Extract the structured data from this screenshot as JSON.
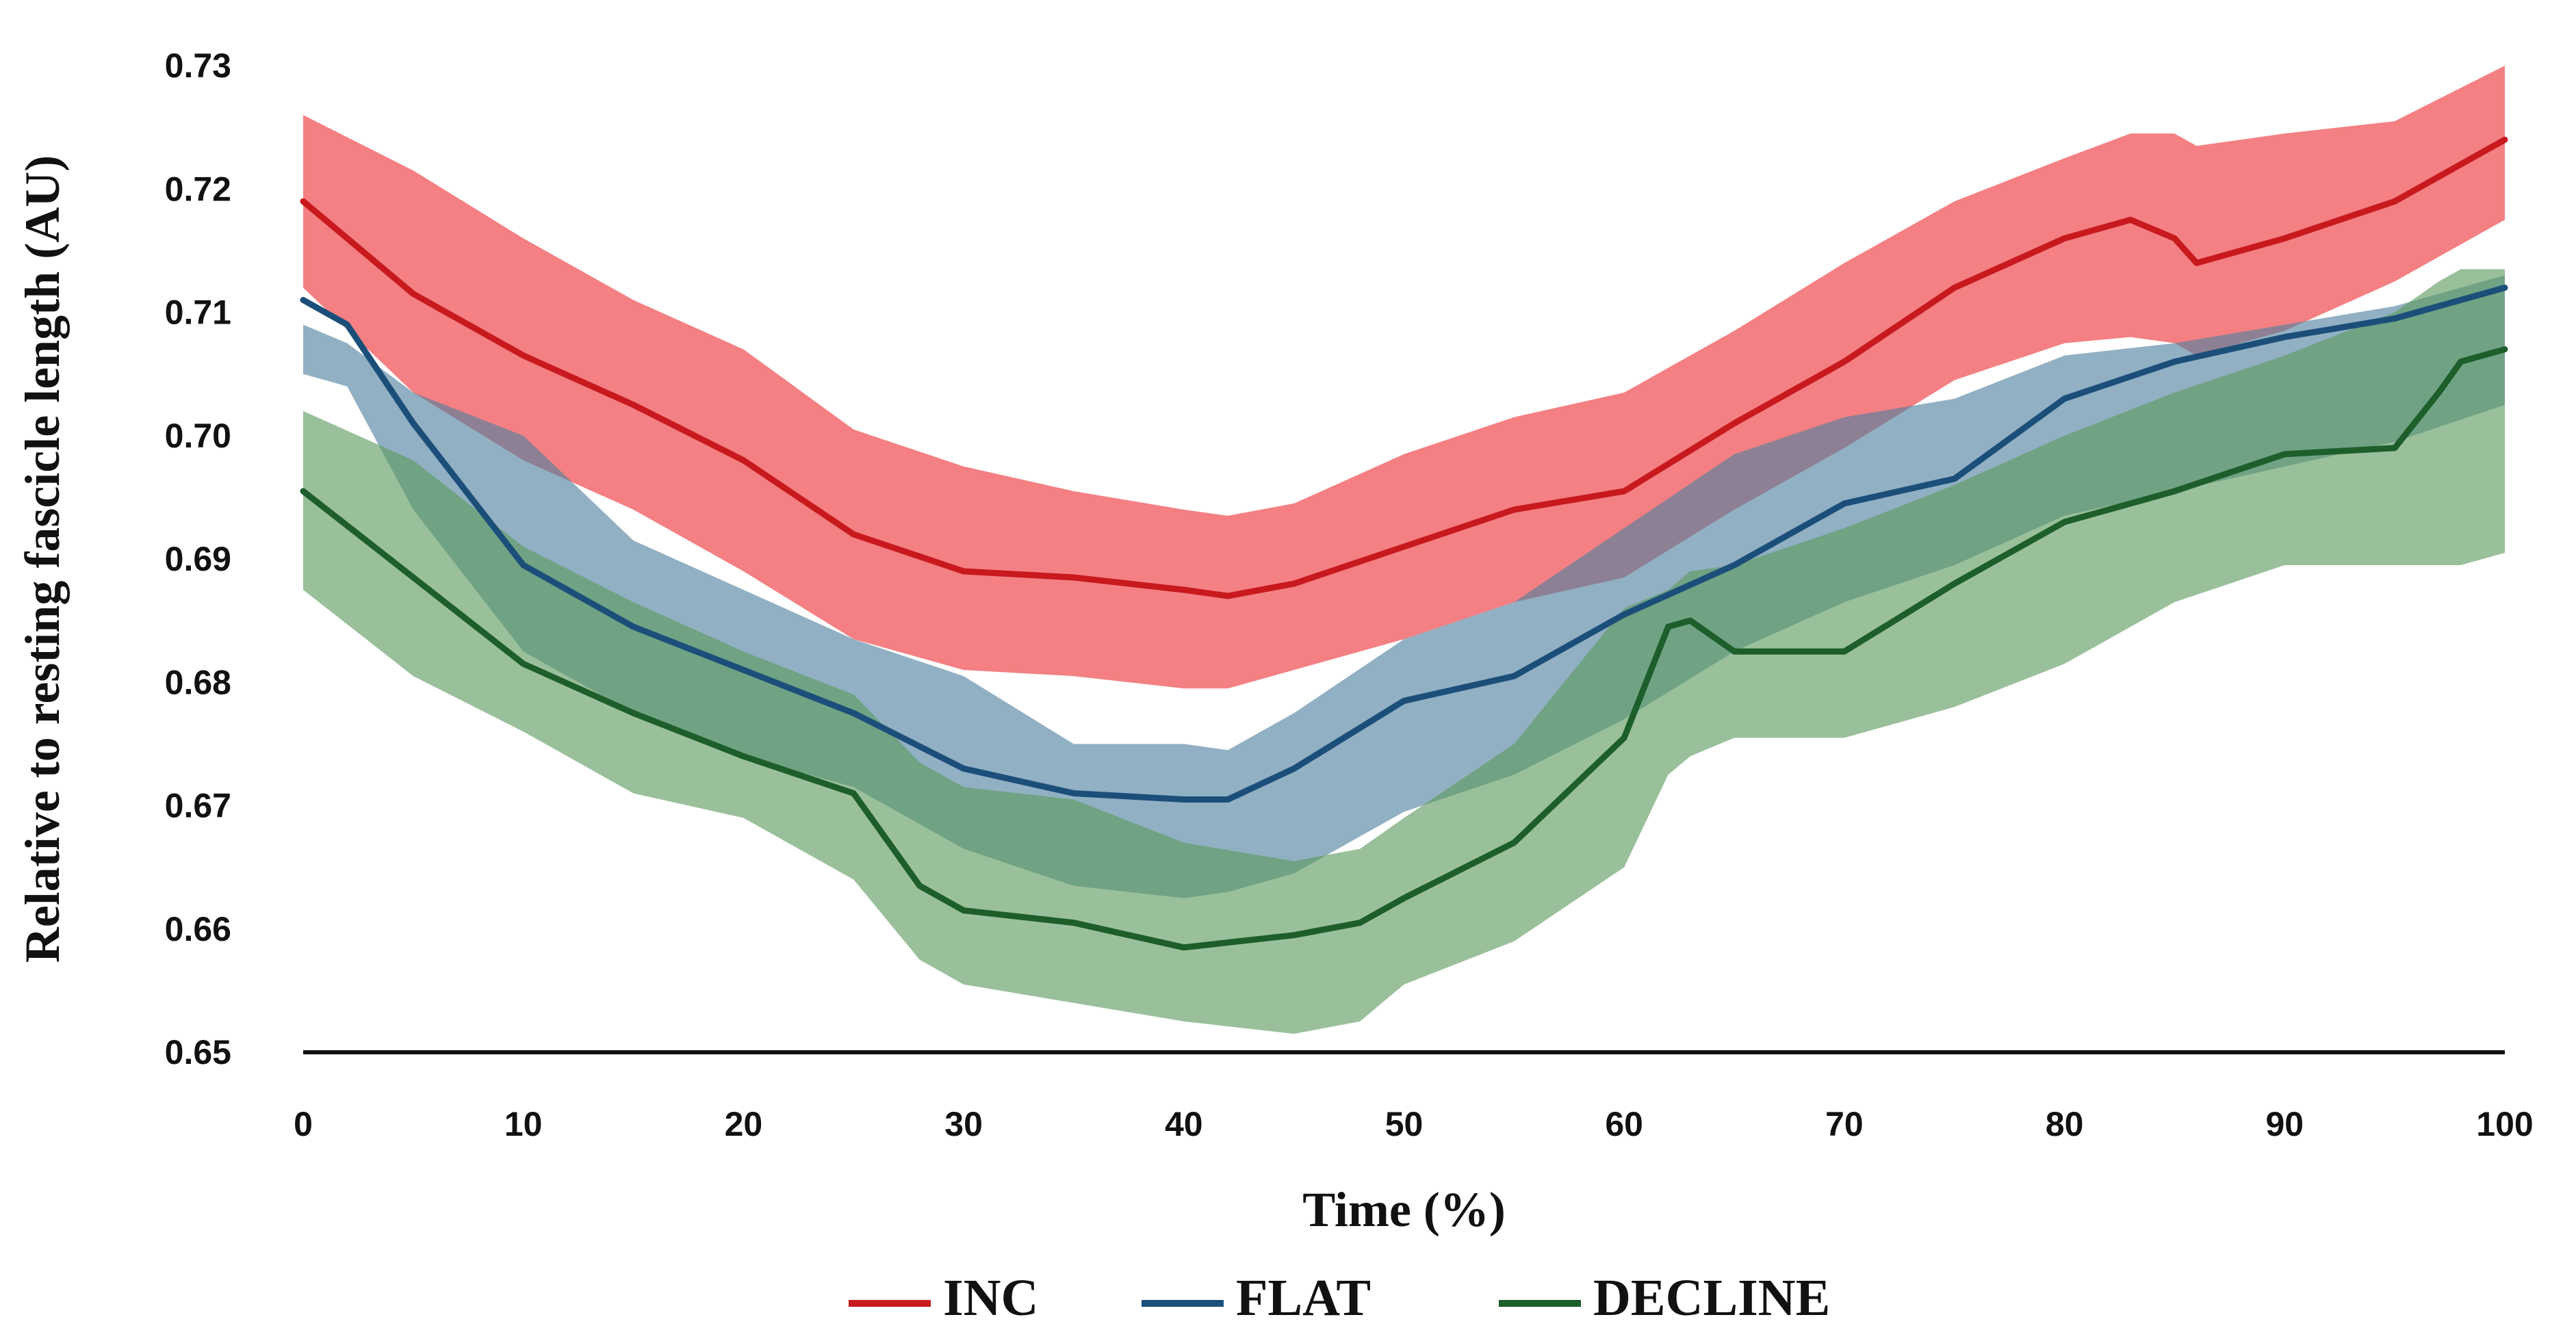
{
  "chart_data": {
    "type": "line",
    "title": "",
    "xlabel": "Time  (%)",
    "ylabel": "Relative to resting fascicle length (AU)",
    "xlim": [
      0,
      100
    ],
    "ylim": [
      0.65,
      0.73
    ],
    "x_ticks": [
      "0",
      "10",
      "20",
      "30",
      "40",
      "50",
      "60",
      "70",
      "80",
      "90",
      "100"
    ],
    "y_ticks": [
      "0.65",
      "0.66",
      "0.67",
      "0.68",
      "0.69",
      "0.70",
      "0.71",
      "0.72",
      "0.73"
    ],
    "legend_position": "bottom",
    "series": [
      {
        "name": "INC",
        "line_color": "#c8191e",
        "band_color": "#ee3237",
        "x": [
          0,
          5,
          10,
          15,
          20,
          25,
          30,
          35,
          40,
          42,
          45,
          50,
          55,
          60,
          65,
          70,
          75,
          80,
          83,
          85,
          86,
          90,
          95,
          100
        ],
        "mean": [
          0.719,
          0.7115,
          0.7065,
          0.7025,
          0.698,
          0.692,
          0.689,
          0.6885,
          0.6875,
          0.687,
          0.688,
          0.691,
          0.694,
          0.6955,
          0.701,
          0.706,
          0.712,
          0.716,
          0.7175,
          0.716,
          0.714,
          0.716,
          0.719,
          0.724
        ],
        "upper": [
          0.726,
          0.7215,
          0.716,
          0.711,
          0.707,
          0.7005,
          0.6975,
          0.6955,
          0.694,
          0.6935,
          0.6945,
          0.6985,
          0.7015,
          0.7035,
          0.7085,
          0.714,
          0.719,
          0.7225,
          0.7245,
          0.7245,
          0.7235,
          0.7245,
          0.7255,
          0.73
        ],
        "lower": [
          0.712,
          0.7035,
          0.698,
          0.694,
          0.689,
          0.6835,
          0.681,
          0.6805,
          0.6795,
          0.6795,
          0.681,
          0.6835,
          0.6865,
          0.6885,
          0.694,
          0.699,
          0.7045,
          0.7075,
          0.708,
          0.7075,
          0.7065,
          0.7085,
          0.7125,
          0.7175
        ]
      },
      {
        "name": "FLAT",
        "line_color": "#1b4f7a",
        "band_color": "#4f7f9e",
        "x": [
          0,
          2,
          5,
          10,
          15,
          20,
          25,
          30,
          35,
          40,
          42,
          45,
          50,
          55,
          60,
          65,
          70,
          75,
          80,
          85,
          90,
          95,
          100
        ],
        "mean": [
          0.711,
          0.709,
          0.701,
          0.6895,
          0.6845,
          0.681,
          0.6775,
          0.673,
          0.671,
          0.6705,
          0.6705,
          0.673,
          0.6785,
          0.6805,
          0.6855,
          0.6895,
          0.6945,
          0.6965,
          0.703,
          0.706,
          0.708,
          0.7095,
          0.712
        ],
        "upper": [
          0.709,
          0.7075,
          0.7035,
          0.7,
          0.6915,
          0.6875,
          0.6835,
          0.6805,
          0.675,
          0.675,
          0.6745,
          0.6775,
          0.6835,
          0.6865,
          0.6925,
          0.6985,
          0.7015,
          0.703,
          0.7065,
          0.7075,
          0.709,
          0.7105,
          0.713
        ],
        "lower": [
          0.705,
          0.704,
          0.694,
          0.6825,
          0.6775,
          0.674,
          0.6715,
          0.6665,
          0.6635,
          0.6625,
          0.663,
          0.6645,
          0.6695,
          0.6725,
          0.677,
          0.6825,
          0.6865,
          0.6895,
          0.6935,
          0.6955,
          0.6975,
          0.6995,
          0.7025
        ]
      },
      {
        "name": "DECLINE",
        "line_color": "#1d5e2b",
        "band_color": "#5c9a5e",
        "x": [
          0,
          5,
          10,
          15,
          20,
          25,
          28,
          30,
          35,
          40,
          45,
          48,
          50,
          55,
          60,
          62,
          63,
          65,
          70,
          75,
          80,
          85,
          90,
          95,
          97,
          98,
          100
        ],
        "mean": [
          0.6955,
          0.6885,
          0.6815,
          0.6775,
          0.674,
          0.671,
          0.6635,
          0.6615,
          0.6605,
          0.6585,
          0.6595,
          0.6605,
          0.6625,
          0.667,
          0.6755,
          0.6845,
          0.685,
          0.6825,
          0.6825,
          0.688,
          0.693,
          0.6955,
          0.6985,
          0.699,
          0.7035,
          0.706,
          0.707
        ],
        "upper": [
          0.702,
          0.698,
          0.691,
          0.6865,
          0.6825,
          0.679,
          0.6735,
          0.6715,
          0.6705,
          0.667,
          0.6655,
          0.6665,
          0.669,
          0.675,
          0.686,
          0.6875,
          0.689,
          0.6895,
          0.6925,
          0.696,
          0.7,
          0.7035,
          0.7065,
          0.71,
          0.7125,
          0.7135,
          0.7135
        ],
        "lower": [
          0.6875,
          0.6805,
          0.676,
          0.671,
          0.669,
          0.664,
          0.6575,
          0.6555,
          0.654,
          0.6525,
          0.6515,
          0.6525,
          0.6555,
          0.659,
          0.665,
          0.6725,
          0.674,
          0.6755,
          0.6755,
          0.678,
          0.6815,
          0.6865,
          0.6895,
          0.6895,
          0.6895,
          0.6895,
          0.6905
        ]
      }
    ]
  }
}
